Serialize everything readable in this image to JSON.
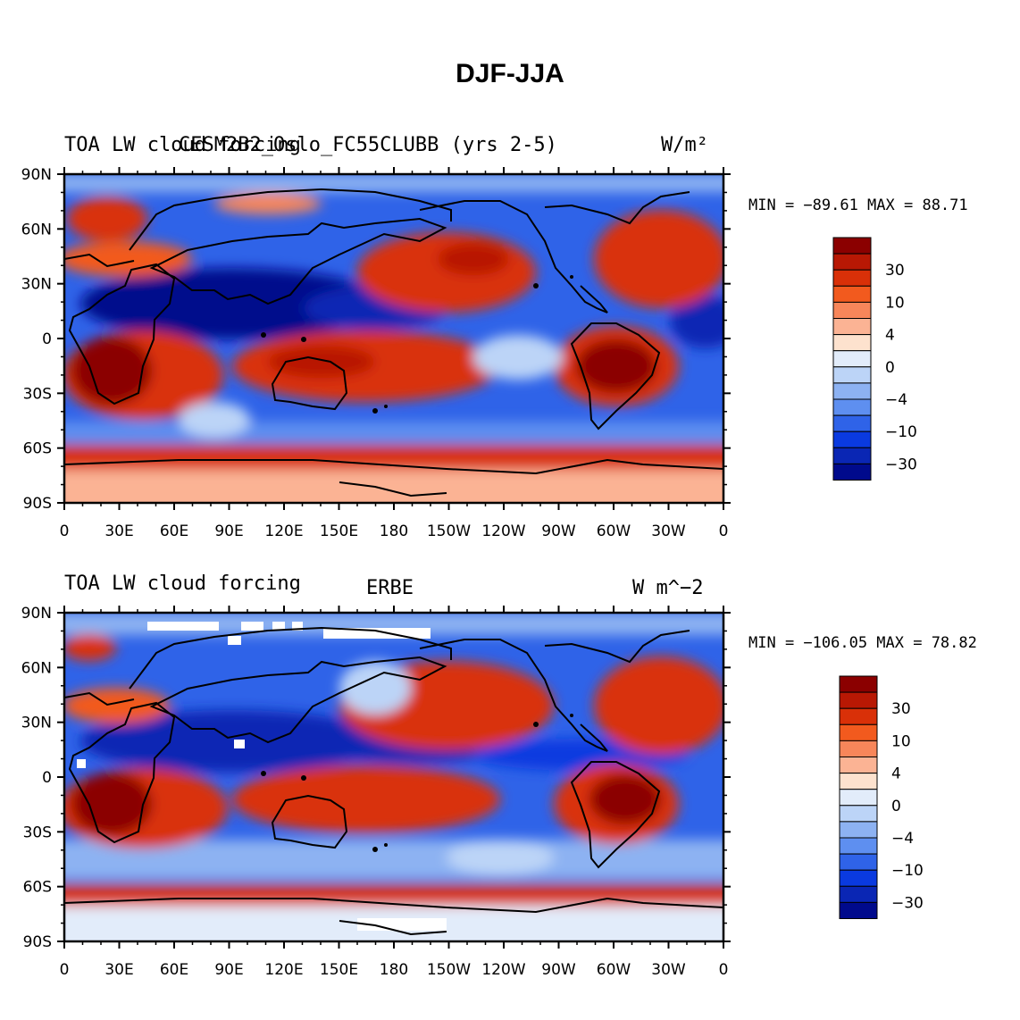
{
  "figure_title": "DJF-JJA",
  "panels": [
    {
      "left_title": "TOA LW cloud forcing",
      "center_title": "CESM2B2_Oslo_FC55CLUBB (yrs 2-5)",
      "right_title": "W/m²",
      "min_max": "MIN = −89.61  MAX =  88.71"
    },
    {
      "left_title": "TOA LW cloud forcing",
      "center_title": "ERBE",
      "right_title": "W m^−2",
      "min_max": "MIN = −106.05 MAX =  78.82"
    }
  ],
  "lat_ticks": [
    "90N",
    "60N",
    "30N",
    "0",
    "30S",
    "60S",
    "90S"
  ],
  "lon_ticks": [
    "0",
    "30E",
    "60E",
    "90E",
    "120E",
    "150E",
    "180",
    "150W",
    "120W",
    "90W",
    "60W",
    "30W",
    "0"
  ],
  "colorbar": {
    "labels": [
      "30",
      "10",
      "4",
      "0",
      "−4",
      "−10",
      "−30"
    ],
    "colors": [
      "#8b0000",
      "#b81804",
      "#d93008",
      "#f25a1e",
      "#f7865a",
      "#fbb394",
      "#fde2ce",
      "#e2ecfa",
      "#bcd4f7",
      "#8db2f2",
      "#5e8ff0",
      "#2f63e8",
      "#0a3ae0",
      "#0a26b4",
      "#000a8c"
    ]
  },
  "fields": {
    "red": "#c82a0a",
    "dark_red": "#8b0000",
    "light_red": "#fcb395",
    "blue": "#1f4fe0",
    "dark_blue": "#000a8c",
    "light_blue": "#9cbcf4",
    "pale": "#fde2ce"
  }
}
